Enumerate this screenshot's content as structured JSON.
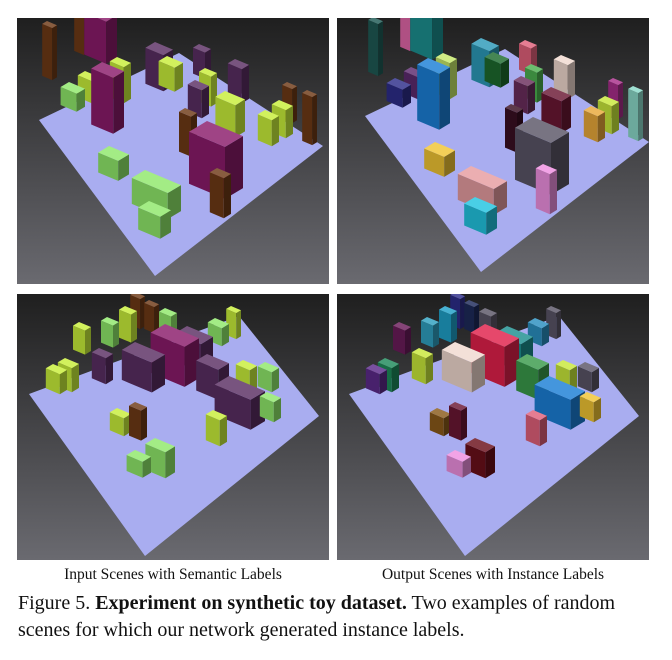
{
  "figure": {
    "panel_labels": {
      "left": "Input Scenes with Semantic Labels",
      "right": "Output Scenes with Instance Labels"
    },
    "caption": {
      "label": "Figure 5.",
      "title": "Experiment on synthetic toy dataset.",
      "text": "Two examples of random scenes for which our network generated instance labels."
    },
    "colors": {
      "background_top": "#1f1f1f",
      "background_bottom": "#6a6a70",
      "ground_plane": "#a9adf0",
      "semantic_green": "#8fe86a",
      "semantic_lime": "#c8ee3a",
      "semantic_purple": "#5a2e63",
      "semantic_magenta": "#8a1b6a",
      "semantic_brown": "#6e3a16"
    }
  }
}
